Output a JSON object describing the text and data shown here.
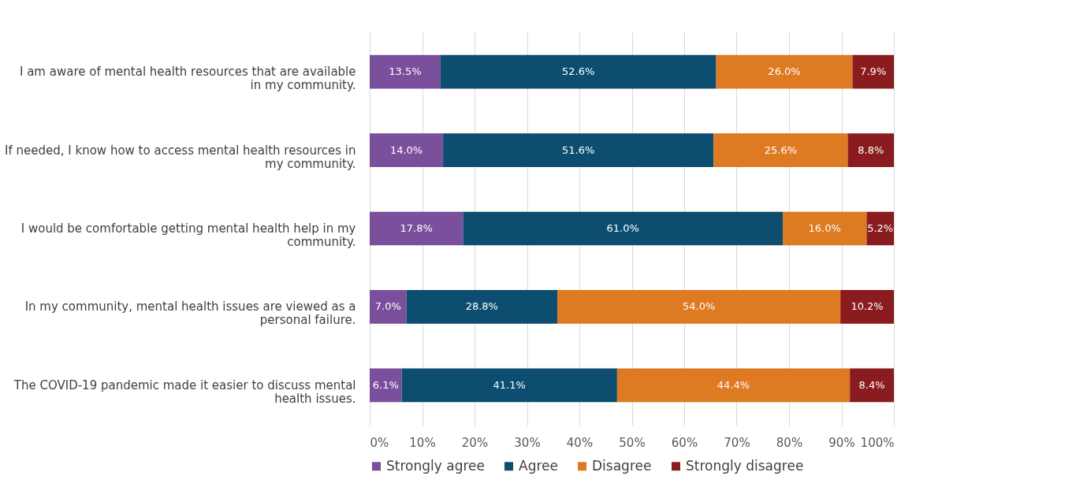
{
  "chart_data": {
    "type": "bar",
    "orientation": "horizontal",
    "stacked": true,
    "categories": [
      "I am aware of mental health resources that are available in my community.",
      "If needed, I know how to access mental health resources in my community.",
      "I would be comfortable getting mental health help in my community.",
      "In my community, mental health issues are viewed as a personal failure.",
      "The COVID-19 pandemic made it easier to discuss mental health issues."
    ],
    "series": [
      {
        "name": "Strongly agree",
        "color": "#7a4f9c",
        "values": [
          13.5,
          14.0,
          17.8,
          7.0,
          6.1
        ],
        "value_labels": [
          "13.5%",
          "14.0%",
          "17.8%",
          "7.0%",
          "6.1%"
        ]
      },
      {
        "name": "Agree",
        "color": "#0d4e70",
        "values": [
          52.6,
          51.6,
          61.0,
          28.8,
          41.1
        ],
        "value_labels": [
          "52.6%",
          "51.6%",
          "61.0%",
          "28.8%",
          "41.1%"
        ]
      },
      {
        "name": "Disagree",
        "color": "#de7a22",
        "values": [
          26.0,
          25.6,
          16.0,
          54.0,
          44.4
        ],
        "value_labels": [
          "26.0%",
          "25.6%",
          "16.0%",
          "54.0%",
          "44.4%"
        ]
      },
      {
        "name": "Strongly disagree",
        "color": "#8a1c1f",
        "values": [
          7.9,
          8.8,
          5.2,
          10.2,
          8.4
        ],
        "value_labels": [
          "7.9%",
          "8.8%",
          "5.2%",
          "10.2%",
          "8.4%"
        ]
      }
    ],
    "xlim": [
      0,
      100
    ],
    "xticks": [
      {
        "value": 0,
        "label": "0%"
      },
      {
        "value": 10,
        "label": "10%"
      },
      {
        "value": 20,
        "label": "20%"
      },
      {
        "value": 30,
        "label": "30%"
      },
      {
        "value": 40,
        "label": "40%"
      },
      {
        "value": 50,
        "label": "50%"
      },
      {
        "value": 60,
        "label": "60%"
      },
      {
        "value": 70,
        "label": "70%"
      },
      {
        "value": 80,
        "label": "80%"
      },
      {
        "value": 90,
        "label": "90%"
      },
      {
        "value": 100,
        "label": "100%"
      }
    ],
    "grid": "x",
    "legend": "bottom"
  }
}
